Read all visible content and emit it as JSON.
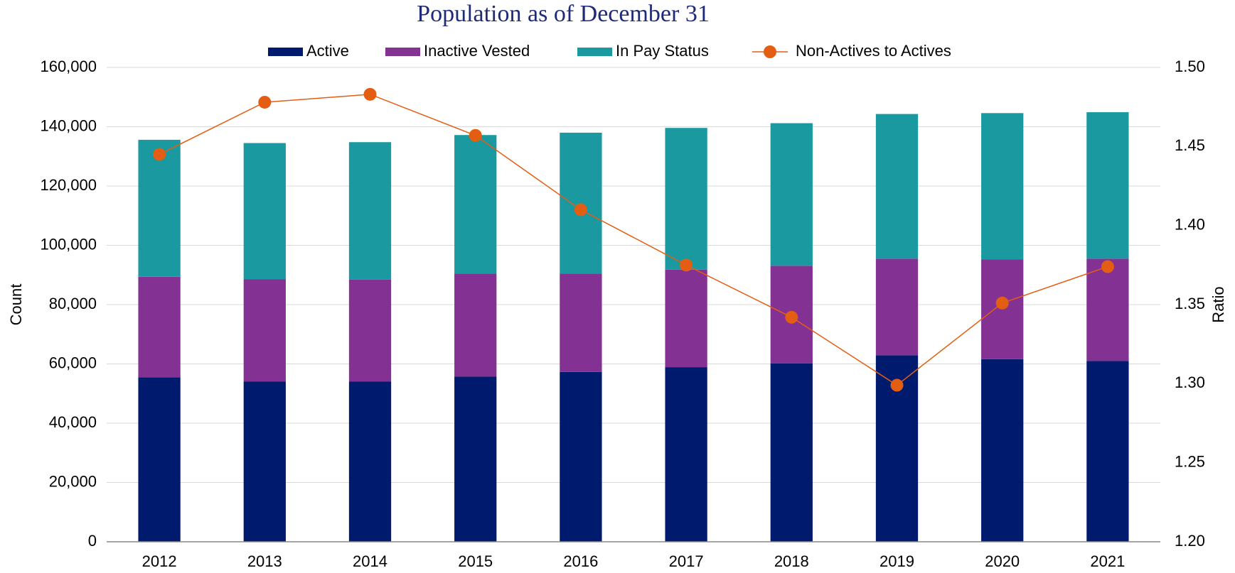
{
  "chart_data": {
    "type": "stacked_bar_line",
    "title": "Population as of December 31",
    "y_label": "Count",
    "y2_label": "Ratio",
    "categories": [
      "2012",
      "2013",
      "2014",
      "2015",
      "2016",
      "2017",
      "2018",
      "2019",
      "2020",
      "2021"
    ],
    "series": [
      {
        "name": "Active",
        "color": "#001a6e",
        "values": [
          55500,
          54100,
          54100,
          55700,
          57300,
          58900,
          60200,
          62900,
          61600,
          61000
        ]
      },
      {
        "name": "Inactive Vested",
        "color": "#833294",
        "values": [
          33900,
          34500,
          34300,
          34800,
          33200,
          32900,
          32900,
          32600,
          33700,
          34500
        ]
      },
      {
        "name": "In Pay Status",
        "color": "#1a9aa0",
        "values": [
          46200,
          45900,
          46400,
          46700,
          47500,
          47800,
          48100,
          48800,
          49300,
          49400
        ]
      },
      {
        "name": "Non-Actives to Actives",
        "color": "#e35d12",
        "axis": "y2",
        "values": [
          1.445,
          1.478,
          1.483,
          1.457,
          1.41,
          1.375,
          1.342,
          1.299,
          1.351,
          1.374
        ]
      }
    ],
    "ylim": [
      0,
      160000
    ],
    "yticks": [
      0,
      {
        "value": 20000,
        "label": "20,000"
      },
      {
        "value": 40000,
        "label": "40,000"
      },
      {
        "value": 60000,
        "label": "60,000"
      },
      {
        "value": 80000,
        "label": "80,000"
      },
      {
        "value": 100000,
        "label": "100,000"
      },
      {
        "value": 120000,
        "label": "120,000"
      },
      {
        "value": 140000,
        "label": "140,000"
      },
      {
        "value": 160000,
        "label": "160,000"
      }
    ],
    "y2lim": [
      1.2,
      1.5
    ],
    "y2ticks": [
      {
        "value": 1.2,
        "label": "1.20"
      },
      1.25,
      {
        "value": 1.3,
        "label": "1.30"
      },
      1.35,
      {
        "value": 1.4,
        "label": "1.40"
      },
      1.45,
      {
        "value": 1.5,
        "label": "1.50"
      }
    ],
    "grid": true,
    "legend": "top"
  }
}
